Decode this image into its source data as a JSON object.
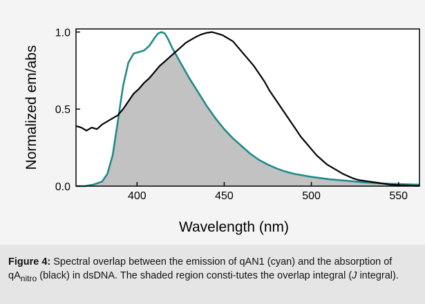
{
  "caption": {
    "label": "Figure 4:",
    "part1": " Spectral overlap between the emission of qAN1 (cyan) and the absorption of qA",
    "sub": "nitro",
    "part2": " (black) in dsDNA. The shaded region consti-tutes the overlap integral (",
    "italic": "J",
    "part3": " integral)."
  },
  "chart_data": {
    "type": "line",
    "xlabel": "Wavelength (nm)",
    "ylabel": "Normalized em/abs",
    "xlim": [
      365,
      562
    ],
    "ylim": [
      0,
      1.02
    ],
    "xticks": [
      400,
      450,
      500,
      550
    ],
    "yticks": [
      0.0,
      0.5,
      1.0
    ],
    "ytick_labels": [
      "0.0",
      "0.5",
      "1.0"
    ],
    "grid": false,
    "shaded": "overlap integral between the two curves",
    "colors": {
      "emission": "#1f8a8a",
      "absorption": "#000000",
      "overlap_fill": "#c2c2c2"
    },
    "series": [
      {
        "key": "emission",
        "x": [
          365,
          370,
          375,
          380,
          383,
          386,
          389,
          392,
          395,
          398,
          401,
          404,
          407,
          410,
          412,
          414,
          416,
          418,
          420,
          425,
          430,
          435,
          440,
          445,
          450,
          455,
          460,
          465,
          470,
          475,
          480,
          485,
          490,
          500,
          510,
          520,
          530,
          540,
          550,
          560,
          562
        ],
        "y": [
          0.0,
          0.0,
          0.01,
          0.03,
          0.08,
          0.2,
          0.42,
          0.65,
          0.8,
          0.86,
          0.87,
          0.88,
          0.91,
          0.96,
          0.99,
          1.0,
          0.99,
          0.95,
          0.9,
          0.8,
          0.7,
          0.61,
          0.52,
          0.44,
          0.37,
          0.31,
          0.26,
          0.21,
          0.17,
          0.14,
          0.115,
          0.095,
          0.08,
          0.06,
          0.045,
          0.035,
          0.025,
          0.018,
          0.013,
          0.01,
          0.01
        ]
      },
      {
        "key": "absorption",
        "x": [
          365,
          368,
          371,
          374,
          377,
          380,
          383,
          386,
          389,
          392,
          395,
          398,
          401,
          404,
          407,
          410,
          413,
          416,
          419,
          422,
          425,
          428,
          431,
          434,
          437,
          440,
          443,
          446,
          449,
          452,
          455,
          458,
          461,
          464,
          467,
          470,
          473,
          476,
          479,
          482,
          485,
          488,
          491,
          494,
          497,
          500,
          503,
          506,
          509,
          512,
          515,
          518,
          521,
          524,
          527,
          530,
          533,
          536,
          539,
          542,
          545,
          548,
          551,
          554,
          557,
          560,
          562
        ],
        "y": [
          0.39,
          0.38,
          0.36,
          0.38,
          0.37,
          0.4,
          0.42,
          0.44,
          0.46,
          0.5,
          0.55,
          0.6,
          0.63,
          0.67,
          0.7,
          0.74,
          0.78,
          0.81,
          0.84,
          0.87,
          0.9,
          0.93,
          0.95,
          0.97,
          0.985,
          0.995,
          1.0,
          0.99,
          0.98,
          0.96,
          0.94,
          0.9,
          0.86,
          0.82,
          0.78,
          0.73,
          0.68,
          0.62,
          0.57,
          0.52,
          0.47,
          0.42,
          0.37,
          0.32,
          0.28,
          0.24,
          0.2,
          0.17,
          0.14,
          0.12,
          0.1,
          0.08,
          0.065,
          0.05,
          0.04,
          0.035,
          0.03,
          0.025,
          0.02,
          0.015,
          0.01,
          0.008,
          0.006,
          0.005,
          0.003,
          0.002,
          0.002
        ]
      }
    ]
  }
}
